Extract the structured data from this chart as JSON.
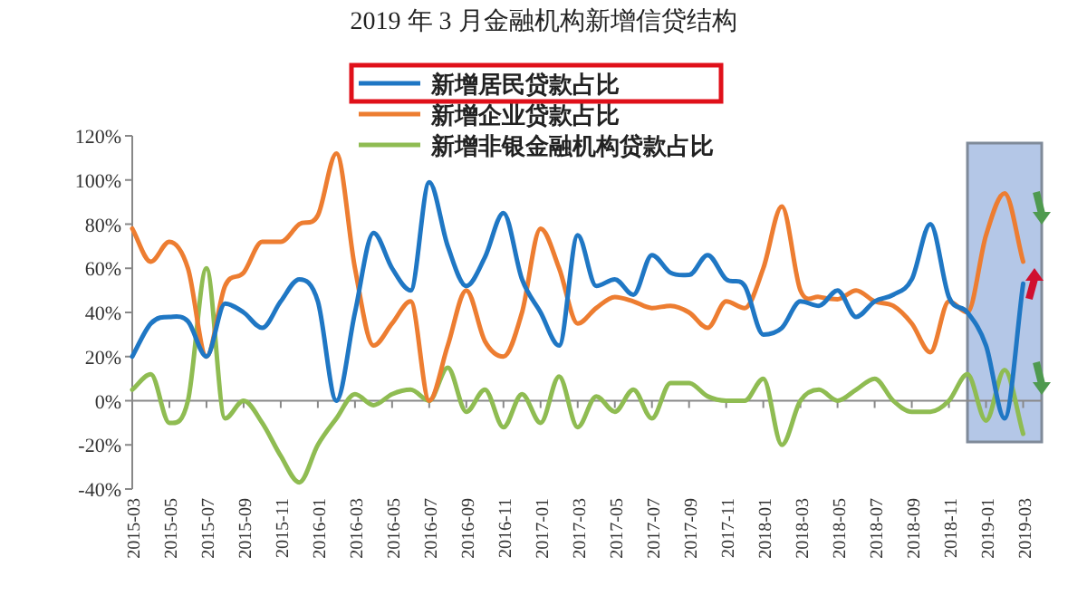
{
  "chart_data": {
    "type": "line",
    "title": "2019 年 3 月金融机构新增信贷结构",
    "x": [
      "2015-03",
      "2015-04",
      "2015-05",
      "2015-06",
      "2015-07",
      "2015-08",
      "2015-09",
      "2015-10",
      "2015-11",
      "2015-12",
      "2016-01",
      "2016-02",
      "2016-03",
      "2016-04",
      "2016-05",
      "2016-06",
      "2016-07",
      "2016-08",
      "2016-09",
      "2016-10",
      "2016-11",
      "2016-12",
      "2017-01",
      "2017-02",
      "2017-03",
      "2017-04",
      "2017-05",
      "2017-06",
      "2017-07",
      "2017-08",
      "2017-09",
      "2017-10",
      "2017-11",
      "2017-12",
      "2018-01",
      "2018-02",
      "2018-03",
      "2018-04",
      "2018-05",
      "2018-06",
      "2018-07",
      "2018-08",
      "2018-09",
      "2018-10",
      "2018-11",
      "2018-12",
      "2019-01",
      "2019-02",
      "2019-03"
    ],
    "series": [
      {
        "name": "新增居民贷款占比",
        "color": "#1f77c4",
        "values": [
          20,
          35,
          38,
          36,
          20,
          44,
          40,
          33,
          45,
          55,
          45,
          0,
          40,
          76,
          60,
          50,
          99,
          70,
          52,
          65,
          85,
          55,
          40,
          25,
          75,
          52,
          55,
          48,
          66,
          58,
          57,
          66,
          55,
          52,
          30,
          33,
          45,
          43,
          50,
          38,
          45,
          48,
          55,
          80,
          47,
          40,
          25,
          -8,
          53
        ]
      },
      {
        "name": "新增企业贷款占比",
        "color": "#ed7d31",
        "values": [
          78,
          63,
          72,
          60,
          20,
          52,
          58,
          72,
          72,
          80,
          84,
          112,
          60,
          25,
          35,
          45,
          0,
          25,
          50,
          27,
          20,
          40,
          78,
          60,
          35,
          42,
          47,
          45,
          42,
          43,
          40,
          33,
          45,
          42,
          60,
          88,
          50,
          47,
          46,
          50,
          45,
          43,
          35,
          22,
          45,
          40,
          75,
          94,
          63
        ]
      },
      {
        "name": "新增非银金融机构贷款占比",
        "color": "#8fbc52",
        "values": [
          5,
          12,
          -10,
          0,
          60,
          -8,
          0,
          -10,
          -25,
          -37,
          -20,
          -8,
          3,
          -2,
          3,
          5,
          0,
          15,
          -5,
          5,
          -12,
          3,
          -10,
          11,
          -12,
          2,
          -5,
          5,
          -8,
          8,
          8,
          2,
          0,
          0,
          10,
          -20,
          0,
          5,
          0,
          5,
          10,
          0,
          -5,
          -5,
          0,
          12,
          -9,
          14,
          -15
        ]
      }
    ],
    "xlim": [
      "2015-03",
      "2019-04"
    ],
    "xticks": [
      "2015-03",
      "2015-05",
      "2015-07",
      "2015-09",
      "2015-11",
      "2016-01",
      "2016-03",
      "2016-05",
      "2016-07",
      "2016-09",
      "2016-11",
      "2017-01",
      "2017-03",
      "2017-05",
      "2017-07",
      "2017-09",
      "2017-11",
      "2018-01",
      "2018-03",
      "2018-05",
      "2018-07",
      "2018-09",
      "2018-11",
      "2019-01",
      "2019-03"
    ],
    "ylim": [
      -40,
      120
    ],
    "yticks": [
      {
        "value": -40,
        "label": "-40%"
      },
      {
        "value": -20,
        "label": "-20%"
      },
      {
        "value": 0,
        "label": "0%"
      },
      {
        "value": 20,
        "label": "20%"
      },
      {
        "value": 40,
        "label": "40%"
      },
      {
        "value": 60,
        "label": "60%"
      },
      {
        "value": 80,
        "label": "80%"
      },
      {
        "value": 100,
        "label": "100%"
      },
      {
        "value": 120,
        "label": "120%"
      }
    ],
    "bands": [
      {
        "axis": "x",
        "from": "2018-12",
        "to": "2019-04",
        "color": "#b4c7e7"
      }
    ],
    "legend": "top"
  }
}
